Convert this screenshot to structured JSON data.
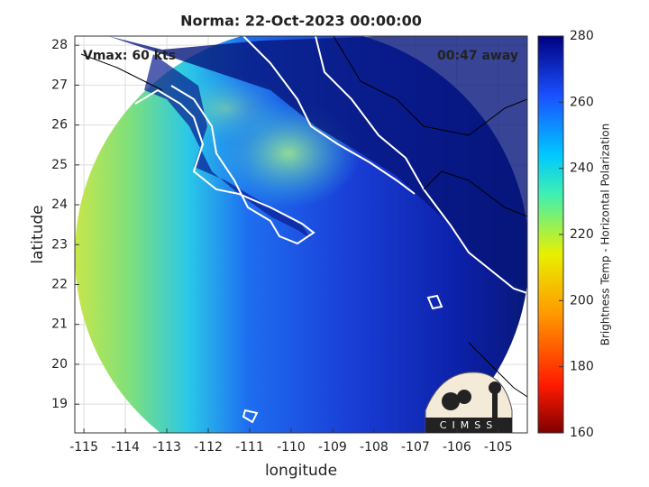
{
  "chart_data": {
    "type": "map",
    "title": "Norma: 22-Oct-2023 00:00:00",
    "xlabel": "longitude",
    "ylabel": "latitude",
    "xlim": [
      -115.22,
      -104.3
    ],
    "ylim": [
      18.28,
      28.23
    ],
    "xticks": [
      -115,
      -114,
      -113,
      -112,
      -111,
      -110,
      -109,
      -108,
      -107,
      -106,
      -105
    ],
    "yticks": [
      19,
      20,
      21,
      22,
      23,
      24,
      25,
      26,
      27,
      28
    ],
    "grid": true,
    "annotations": [
      "Vmax: 60 kts",
      "00:47 away"
    ],
    "logo": "CIMSS",
    "colorbar": {
      "label": "Brightness Temp - Horizontal Polarization",
      "lim": [
        160,
        280
      ],
      "ticks": [
        160,
        180,
        200,
        220,
        240,
        260,
        280
      ]
    }
  }
}
